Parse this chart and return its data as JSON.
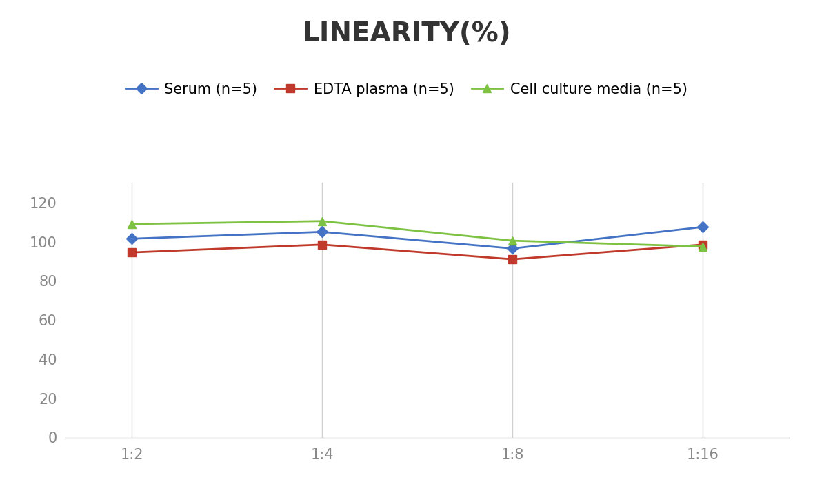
{
  "title": "LINEARITY(%)",
  "x_labels": [
    "1:2",
    "1:4",
    "1:8",
    "1:16"
  ],
  "x_positions": [
    0,
    1,
    2,
    3
  ],
  "series": [
    {
      "label": "Serum (n=5)",
      "values": [
        101.5,
        105.0,
        96.5,
        107.5
      ],
      "color": "#4472C4",
      "marker": "D",
      "marker_size": 8,
      "linewidth": 2
    },
    {
      "label": "EDTA plasma (n=5)",
      "values": [
        94.5,
        98.5,
        91.0,
        98.5
      ],
      "color": "#C0392B",
      "marker": "s",
      "marker_size": 8,
      "linewidth": 2
    },
    {
      "label": "Cell culture media (n=5)",
      "values": [
        109.0,
        110.5,
        100.5,
        97.5
      ],
      "color": "#7DC242",
      "marker": "^",
      "marker_size": 8,
      "linewidth": 2
    }
  ],
  "ylim": [
    0,
    130
  ],
  "yticks": [
    0,
    20,
    40,
    60,
    80,
    100,
    120
  ],
  "title_fontsize": 28,
  "legend_fontsize": 15,
  "tick_fontsize": 15,
  "background_color": "#ffffff",
  "grid_color": "#d0d0d0",
  "tick_color": "#888888",
  "title_color": "#333333"
}
